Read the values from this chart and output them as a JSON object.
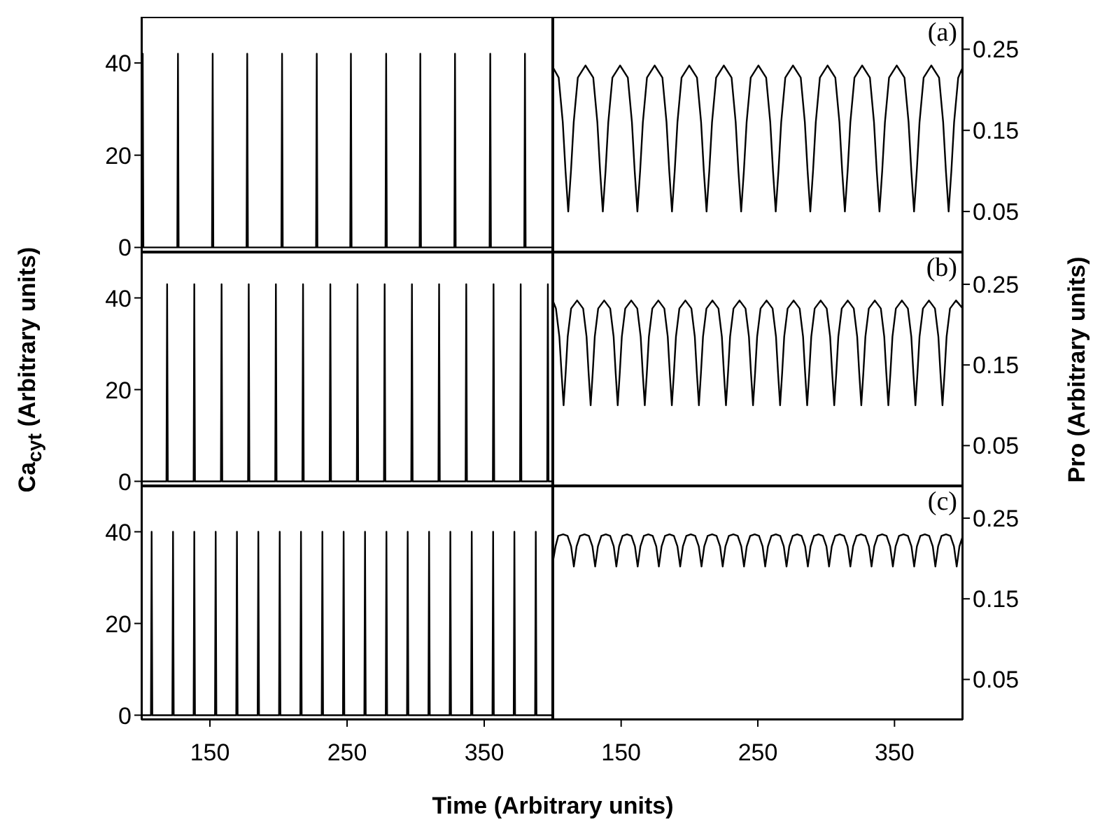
{
  "chart_data": [
    {
      "type": "line",
      "xlim": [
        100,
        400
      ],
      "xticks": [
        150,
        250,
        350
      ],
      "ylim": [
        -1,
        50
      ],
      "yticks": [
        0,
        20,
        40
      ],
      "tick_labels": "y",
      "x": [
        100,
        100.5,
        101,
        101.5,
        126.2,
        126.7,
        127.2,
        151.5,
        152,
        152.5,
        176.7,
        177.2,
        177.7,
        202.1,
        202.6,
        203.1,
        227.4,
        227.9,
        228.4,
        252.3,
        252.8,
        253.3,
        278,
        278.5,
        279,
        302.9,
        303.4,
        303.9,
        328.2,
        328.7,
        329.2,
        353.9,
        354.4,
        354.9,
        379.2,
        379.7,
        380.2,
        400
      ],
      "series": [
        {
          "color": "#000000",
          "values": [
            0,
            0,
            42,
            0,
            0,
            42,
            0,
            0,
            42,
            0,
            0,
            42,
            0,
            0,
            42,
            0,
            0,
            42,
            0,
            0,
            42,
            0,
            0,
            42,
            0,
            0,
            42,
            0,
            0,
            42,
            0,
            0,
            42,
            0,
            0,
            42,
            0,
            0
          ]
        }
      ]
    },
    {
      "type": "line",
      "xlim": [
        100,
        400
      ],
      "xticks": [
        150,
        250,
        350
      ],
      "ylim": [
        0,
        0.29
      ],
      "yticks": [
        0.05,
        0.15,
        0.25
      ],
      "tick_labels": "y",
      "annotations": [
        "(a)"
      ],
      "x": [
        100,
        104.3,
        107.3,
        109.3,
        111.3,
        113.3,
        115.3,
        118.3,
        123.9,
        129.6,
        132.6,
        134.6,
        136.6,
        138.6,
        140.6,
        143.6,
        149.2,
        154.9,
        157.9,
        159.9,
        161.9,
        163.9,
        165.9,
        168.9,
        174.5,
        180.2,
        183.2,
        185.2,
        187.2,
        189.2,
        191.2,
        194.2,
        199.8,
        205.5,
        208.5,
        210.5,
        212.5,
        214.5,
        216.5,
        219.5,
        225.1,
        230.8,
        233.8,
        235.8,
        237.8,
        239.8,
        241.8,
        244.8,
        250.4,
        256.1,
        259.1,
        261.1,
        263.1,
        265.1,
        267.1,
        270.1,
        275.7,
        281.4,
        284.4,
        286.4,
        288.4,
        290.4,
        292.4,
        295.4,
        301,
        306.7,
        309.7,
        311.7,
        313.7,
        315.7,
        317.7,
        320.7,
        326.3,
        332,
        335,
        337,
        339,
        341,
        343,
        346,
        351.6,
        357.3,
        360.3,
        362.3,
        364.3,
        366.3,
        368.3,
        371.3,
        376.9,
        382.6,
        385.6,
        387.6,
        389.6,
        391.6,
        393.6,
        396.6,
        400
      ],
      "series": [
        {
          "color": "#000000",
          "values": [
            0.228,
            0.215,
            0.16,
            0.1,
            0.05,
            0.1,
            0.16,
            0.215,
            0.23,
            0.215,
            0.16,
            0.1,
            0.05,
            0.1,
            0.16,
            0.215,
            0.23,
            0.215,
            0.16,
            0.1,
            0.05,
            0.1,
            0.16,
            0.215,
            0.23,
            0.215,
            0.16,
            0.1,
            0.05,
            0.1,
            0.16,
            0.215,
            0.23,
            0.215,
            0.16,
            0.1,
            0.05,
            0.1,
            0.16,
            0.215,
            0.23,
            0.215,
            0.16,
            0.1,
            0.05,
            0.1,
            0.16,
            0.215,
            0.23,
            0.215,
            0.16,
            0.1,
            0.05,
            0.1,
            0.16,
            0.215,
            0.23,
            0.215,
            0.16,
            0.1,
            0.05,
            0.1,
            0.16,
            0.215,
            0.23,
            0.215,
            0.16,
            0.1,
            0.05,
            0.1,
            0.16,
            0.215,
            0.23,
            0.215,
            0.16,
            0.1,
            0.05,
            0.1,
            0.16,
            0.215,
            0.23,
            0.215,
            0.16,
            0.1,
            0.05,
            0.1,
            0.16,
            0.215,
            0.23,
            0.215,
            0.16,
            0.1,
            0.05,
            0.1,
            0.16,
            0.215,
            0.228
          ]
        }
      ]
    },
    {
      "type": "line",
      "xlim": [
        100,
        400
      ],
      "xticks": [
        150,
        250,
        350
      ],
      "ylim": [
        -1,
        50
      ],
      "yticks": [
        0,
        20,
        40
      ],
      "tick_labels": "y",
      "ylabel": "Ca$_{cyt}$ (Arbitrary units)",
      "x": [
        100,
        118.3,
        118.8,
        119.3,
        138.1,
        138.6,
        139.1,
        158,
        158.5,
        159,
        177.8,
        178.3,
        178.8,
        197.6,
        198.1,
        198.6,
        217.4,
        217.9,
        218.4,
        237.3,
        237.8,
        238.3,
        257.1,
        257.6,
        258.1,
        276.9,
        277.4,
        277.9,
        296.8,
        297.3,
        297.8,
        316.6,
        317.1,
        317.6,
        336.4,
        336.9,
        337.4,
        356.3,
        356.8,
        357.3,
        376.1,
        376.6,
        377.1,
        395.9,
        396.4,
        396.9,
        400
      ],
      "series": [
        {
          "color": "#000000",
          "values": [
            0,
            0,
            43,
            0,
            0,
            43,
            0,
            0,
            43,
            0,
            0,
            43,
            0,
            0,
            43,
            0,
            0,
            43,
            0,
            0,
            43,
            0,
            0,
            43,
            0,
            0,
            43,
            0,
            0,
            43,
            0,
            0,
            43,
            0,
            0,
            43,
            0,
            0,
            43,
            0,
            0,
            43,
            0,
            0,
            43,
            0,
            0
          ]
        }
      ]
    },
    {
      "type": "line",
      "xlim": [
        100,
        400
      ],
      "xticks": [
        150,
        250,
        350
      ],
      "ylim": [
        0,
        0.29
      ],
      "yticks": [
        0.05,
        0.15,
        0.25
      ],
      "tick_labels": "y",
      "annotations": [
        "(b)"
      ],
      "ylabel": "Pro (Arbitrary units)",
      "x": [
        100,
        102.3,
        104.8,
        106.4,
        107.9,
        109.4,
        110.9,
        113.4,
        117.8,
        122.2,
        124.7,
        126.2,
        127.7,
        129.2,
        130.7,
        133.2,
        137.6,
        142,
        144.5,
        146,
        147.5,
        149,
        150.5,
        153,
        157.4,
        161.8,
        164.3,
        165.8,
        167.3,
        168.8,
        170.3,
        172.8,
        177.2,
        181.6,
        184.1,
        185.6,
        187.1,
        188.6,
        190.1,
        192.6,
        197,
        201.4,
        203.9,
        205.4,
        206.9,
        208.4,
        209.9,
        212.4,
        216.8,
        221.2,
        223.7,
        225.2,
        226.7,
        228.2,
        229.7,
        232.2,
        236.6,
        241,
        243.5,
        245,
        246.5,
        248,
        249.5,
        252,
        256.4,
        260.8,
        263.3,
        264.8,
        266.3,
        267.8,
        269.3,
        271.8,
        276.2,
        280.6,
        283.1,
        284.6,
        286.1,
        287.6,
        289.1,
        291.6,
        296,
        300.4,
        302.9,
        304.4,
        305.9,
        307.4,
        308.9,
        311.4,
        315.8,
        320.2,
        322.7,
        324.2,
        325.7,
        327.2,
        328.7,
        331.2,
        335.6,
        340,
        342.5,
        344,
        345.5,
        347,
        348.5,
        351,
        355.4,
        359.8,
        362.3,
        363.8,
        365.3,
        366.8,
        368.3,
        370.8,
        375.2,
        379.6,
        382.1,
        383.6,
        385.1,
        386.6,
        388.1,
        390.6,
        395,
        400
      ],
      "series": [
        {
          "color": "#000000",
          "values": [
            0.23,
            0.22,
            0.185,
            0.14,
            0.1,
            0.14,
            0.185,
            0.22,
            0.23,
            0.22,
            0.185,
            0.14,
            0.1,
            0.14,
            0.185,
            0.22,
            0.23,
            0.22,
            0.185,
            0.14,
            0.1,
            0.14,
            0.185,
            0.22,
            0.23,
            0.22,
            0.185,
            0.14,
            0.1,
            0.14,
            0.185,
            0.22,
            0.23,
            0.22,
            0.185,
            0.14,
            0.1,
            0.14,
            0.185,
            0.22,
            0.23,
            0.22,
            0.185,
            0.14,
            0.1,
            0.14,
            0.185,
            0.22,
            0.23,
            0.22,
            0.185,
            0.14,
            0.1,
            0.14,
            0.185,
            0.22,
            0.23,
            0.22,
            0.185,
            0.14,
            0.1,
            0.14,
            0.185,
            0.22,
            0.23,
            0.22,
            0.185,
            0.14,
            0.1,
            0.14,
            0.185,
            0.22,
            0.23,
            0.22,
            0.185,
            0.14,
            0.1,
            0.14,
            0.185,
            0.22,
            0.23,
            0.22,
            0.185,
            0.14,
            0.1,
            0.14,
            0.185,
            0.22,
            0.23,
            0.22,
            0.185,
            0.14,
            0.1,
            0.14,
            0.185,
            0.22,
            0.23,
            0.22,
            0.185,
            0.14,
            0.1,
            0.14,
            0.185,
            0.22,
            0.23,
            0.22,
            0.185,
            0.14,
            0.1,
            0.14,
            0.185,
            0.22,
            0.23,
            0.22,
            0.185,
            0.14,
            0.1,
            0.14,
            0.185,
            0.22,
            0.23,
            0.22
          ]
        }
      ]
    },
    {
      "type": "line",
      "xlim": [
        100,
        400
      ],
      "xticks": [
        150,
        250,
        350
      ],
      "ylim": [
        -1,
        50
      ],
      "yticks": [
        0,
        20,
        40
      ],
      "xlabel": "Time (Arbitrary units)",
      "x": [
        100,
        107,
        107.5,
        108,
        122.6,
        123.1,
        123.6,
        138.1,
        138.6,
        139.1,
        153.7,
        154.2,
        154.7,
        169.2,
        169.7,
        170.2,
        184.8,
        185.3,
        185.8,
        200.4,
        200.9,
        201.4,
        215.9,
        216.4,
        216.9,
        231.5,
        232,
        232.5,
        247,
        247.5,
        248,
        262.6,
        263.1,
        263.6,
        278.2,
        278.7,
        279.2,
        293.7,
        294.2,
        294.7,
        309.3,
        309.8,
        310.3,
        324.8,
        325.3,
        325.8,
        340.4,
        340.9,
        341.4,
        356,
        356.5,
        357,
        371.5,
        372,
        372.5,
        387.1,
        387.6,
        388.1,
        400
      ],
      "series": [
        {
          "color": "#000000",
          "values": [
            0,
            0,
            40,
            0,
            0,
            40,
            0,
            0,
            40,
            0,
            0,
            40,
            0,
            0,
            40,
            0,
            0,
            40,
            0,
            0,
            40,
            0,
            0,
            40,
            0,
            0,
            40,
            0,
            0,
            40,
            0,
            0,
            40,
            0,
            0,
            40,
            0,
            0,
            40,
            0,
            0,
            40,
            0,
            0,
            40,
            0,
            0,
            40,
            0,
            0,
            40,
            0,
            0,
            40,
            0,
            0,
            40,
            0,
            0
          ]
        }
      ]
    },
    {
      "type": "line",
      "xlim": [
        100,
        400
      ],
      "xticks": [
        150,
        250,
        350
      ],
      "ylim": [
        0,
        0.29
      ],
      "yticks": [
        0.05,
        0.15,
        0.25
      ],
      "annotations": [
        "(c)"
      ],
      "x": [
        100,
        102,
        104,
        107.6,
        110.8,
        113.4,
        115.4,
        117.4,
        119.9,
        123.2,
        126.4,
        129,
        131,
        133,
        135.5,
        138.8,
        142,
        144.6,
        146.5,
        148.5,
        151,
        154.3,
        157.5,
        160.1,
        162.1,
        164.1,
        166.6,
        169.9,
        173.1,
        175.7,
        177.6,
        179.6,
        182.1,
        185.4,
        188.6,
        191.2,
        193.2,
        195.2,
        197.7,
        201,
        204.2,
        206.8,
        208.8,
        210.8,
        213.3,
        216.6,
        219.8,
        222.4,
        224.3,
        226.3,
        228.8,
        232.1,
        235.3,
        237.9,
        239.9,
        241.9,
        244.4,
        247.7,
        250.9,
        253.5,
        255.4,
        257.4,
        259.9,
        263.2,
        266.4,
        269,
        271,
        273,
        275.5,
        278.8,
        282,
        284.6,
        286.6,
        288.6,
        291.1,
        294.4,
        297.6,
        300.2,
        302.1,
        304.1,
        306.6,
        309.9,
        313.1,
        315.7,
        317.7,
        319.7,
        322.2,
        325.5,
        328.7,
        331.3,
        333.2,
        335.2,
        337.7,
        341,
        344.2,
        346.8,
        348.8,
        350.8,
        353.3,
        356.6,
        359.8,
        362.4,
        364.4,
        366.4,
        368.9,
        372.2,
        375.4,
        378,
        379.9,
        381.9,
        384.4,
        387.7,
        390.9,
        393.5,
        395.5,
        397.5,
        400
      ],
      "series": [
        {
          "color": "#000000",
          "values": [
            0.195,
            0.215,
            0.228,
            0.23,
            0.228,
            0.215,
            0.19,
            0.215,
            0.228,
            0.23,
            0.228,
            0.215,
            0.19,
            0.215,
            0.228,
            0.23,
            0.228,
            0.215,
            0.19,
            0.215,
            0.228,
            0.23,
            0.228,
            0.215,
            0.19,
            0.215,
            0.228,
            0.23,
            0.228,
            0.215,
            0.19,
            0.215,
            0.228,
            0.23,
            0.228,
            0.215,
            0.19,
            0.215,
            0.228,
            0.23,
            0.228,
            0.215,
            0.19,
            0.215,
            0.228,
            0.23,
            0.228,
            0.215,
            0.19,
            0.215,
            0.228,
            0.23,
            0.228,
            0.215,
            0.19,
            0.215,
            0.228,
            0.23,
            0.228,
            0.215,
            0.19,
            0.215,
            0.228,
            0.23,
            0.228,
            0.215,
            0.19,
            0.215,
            0.228,
            0.23,
            0.228,
            0.215,
            0.19,
            0.215,
            0.228,
            0.23,
            0.228,
            0.215,
            0.19,
            0.215,
            0.228,
            0.23,
            0.228,
            0.215,
            0.19,
            0.215,
            0.228,
            0.23,
            0.228,
            0.215,
            0.19,
            0.215,
            0.228,
            0.23,
            0.228,
            0.215,
            0.19,
            0.215,
            0.228,
            0.23,
            0.228,
            0.215,
            0.19,
            0.215,
            0.228,
            0.23,
            0.228,
            0.215,
            0.19,
            0.215,
            0.228,
            0.23,
            0.228,
            0.215,
            0.19,
            0.215,
            0.228
          ]
        }
      ]
    }
  ]
}
